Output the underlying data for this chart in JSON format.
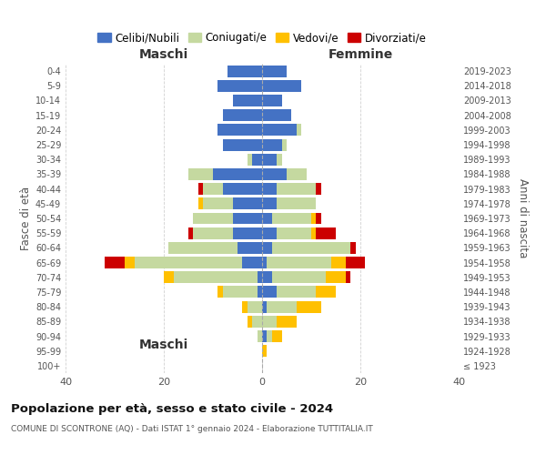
{
  "age_groups": [
    "100+",
    "95-99",
    "90-94",
    "85-89",
    "80-84",
    "75-79",
    "70-74",
    "65-69",
    "60-64",
    "55-59",
    "50-54",
    "45-49",
    "40-44",
    "35-39",
    "30-34",
    "25-29",
    "20-24",
    "15-19",
    "10-14",
    "5-9",
    "0-4"
  ],
  "birth_years": [
    "≤ 1923",
    "1924-1928",
    "1929-1933",
    "1934-1938",
    "1939-1943",
    "1944-1948",
    "1949-1953",
    "1954-1958",
    "1959-1963",
    "1964-1968",
    "1969-1973",
    "1974-1978",
    "1979-1983",
    "1984-1988",
    "1989-1993",
    "1994-1998",
    "1999-2003",
    "2004-2008",
    "2009-2013",
    "2014-2018",
    "2019-2023"
  ],
  "male": {
    "celibi": [
      0,
      0,
      0,
      0,
      0,
      1,
      1,
      4,
      5,
      6,
      6,
      6,
      8,
      10,
      2,
      8,
      9,
      8,
      6,
      9,
      7
    ],
    "coniugati": [
      0,
      0,
      1,
      2,
      3,
      7,
      17,
      22,
      14,
      8,
      8,
      6,
      4,
      5,
      1,
      0,
      0,
      0,
      0,
      0,
      0
    ],
    "vedovi": [
      0,
      0,
      0,
      1,
      1,
      1,
      2,
      2,
      0,
      0,
      0,
      1,
      0,
      0,
      0,
      0,
      0,
      0,
      0,
      0,
      0
    ],
    "divorziati": [
      0,
      0,
      0,
      0,
      0,
      0,
      0,
      4,
      0,
      1,
      0,
      0,
      1,
      0,
      0,
      0,
      0,
      0,
      0,
      0,
      0
    ]
  },
  "female": {
    "nubili": [
      0,
      0,
      1,
      0,
      1,
      3,
      2,
      1,
      2,
      3,
      2,
      3,
      3,
      5,
      3,
      4,
      7,
      6,
      4,
      8,
      5
    ],
    "coniugate": [
      0,
      0,
      1,
      3,
      6,
      8,
      11,
      13,
      16,
      7,
      8,
      8,
      8,
      4,
      1,
      1,
      1,
      0,
      0,
      0,
      0
    ],
    "vedove": [
      0,
      1,
      2,
      4,
      5,
      4,
      4,
      3,
      0,
      1,
      1,
      0,
      0,
      0,
      0,
      0,
      0,
      0,
      0,
      0,
      0
    ],
    "divorziate": [
      0,
      0,
      0,
      0,
      0,
      0,
      1,
      4,
      1,
      4,
      1,
      0,
      1,
      0,
      0,
      0,
      0,
      0,
      0,
      0,
      0
    ]
  },
  "colors": {
    "celibi": "#4472c4",
    "coniugati": "#c5d9a0",
    "vedovi": "#ffc000",
    "divorziati": "#cc0000"
  },
  "xlim": 40,
  "title": "Popolazione per età, sesso e stato civile - 2024",
  "subtitle": "COMUNE DI SCONTRONE (AQ) - Dati ISTAT 1° gennaio 2024 - Elaborazione TUTTITALIA.IT",
  "ylabel_left": "Fasce di età",
  "ylabel_right": "Anni di nascita",
  "xlabel_left": "Maschi",
  "xlabel_right": "Femmine",
  "background": "#ffffff",
  "grid_color": "#cccccc"
}
